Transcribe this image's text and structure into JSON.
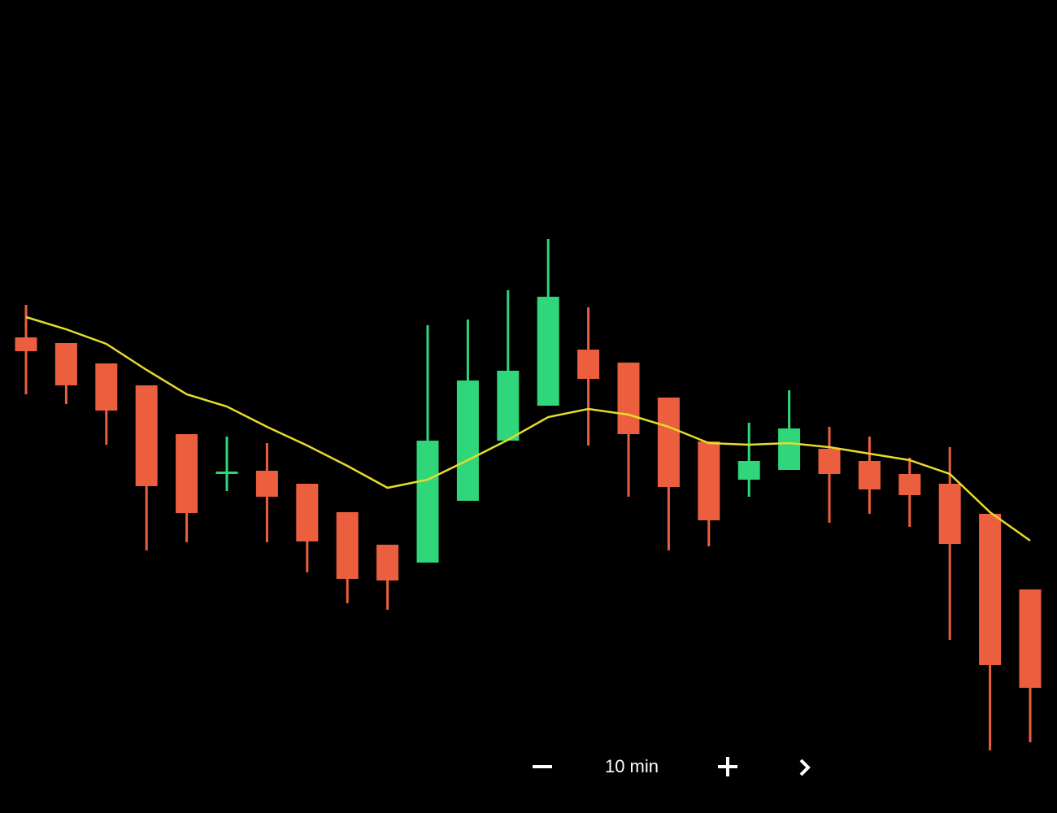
{
  "chart_data": {
    "type": "candlestick",
    "ylim": [
      0,
      100
    ],
    "up_color": "#2fd67a",
    "down_color": "#ec5f3e",
    "open": [
      58.5,
      57.8,
      55.3,
      52.6,
      46.6,
      42.0,
      42.1,
      40.5,
      37.0,
      33.0,
      30.8,
      38.4,
      45.8,
      50.1,
      57.0,
      55.4,
      51.1,
      45.7,
      41.0,
      42.2,
      44.8,
      43.3,
      41.7,
      40.5,
      36.8,
      27.5
    ],
    "high": [
      62.5,
      57.8,
      55.3,
      52.6,
      46.6,
      46.3,
      45.5,
      40.5,
      37.0,
      33.0,
      60.0,
      60.7,
      64.3,
      70.6,
      62.2,
      55.4,
      51.1,
      45.7,
      48.0,
      52.0,
      47.5,
      46.3,
      43.7,
      45.0,
      36.8,
      27.5
    ],
    "low": [
      51.5,
      50.3,
      45.3,
      32.3,
      33.3,
      39.6,
      33.3,
      29.6,
      25.8,
      25.0,
      30.8,
      38.4,
      45.8,
      50.1,
      45.2,
      38.9,
      32.3,
      32.8,
      38.9,
      42.2,
      35.7,
      36.8,
      35.2,
      21.3,
      7.7,
      8.7
    ],
    "close": [
      56.8,
      52.6,
      49.5,
      40.2,
      36.9,
      42.0,
      38.9,
      33.4,
      28.8,
      28.6,
      45.8,
      53.2,
      54.4,
      63.5,
      53.4,
      46.6,
      40.1,
      36.0,
      43.3,
      47.3,
      41.7,
      39.8,
      39.1,
      33.1,
      18.2,
      15.4
    ],
    "moving_average": {
      "color": "#e6dc2c",
      "values": [
        61.0,
        59.5,
        57.7,
        54.5,
        51.5,
        50.0,
        47.5,
        45.2,
        42.7,
        40.0,
        41.0,
        43.4,
        45.9,
        48.7,
        49.7,
        49.0,
        47.5,
        45.5,
        45.3,
        45.5,
        45.0,
        44.2,
        43.4,
        41.7,
        37.0,
        33.5
      ]
    }
  },
  "controls": {
    "interval": "10 min"
  }
}
